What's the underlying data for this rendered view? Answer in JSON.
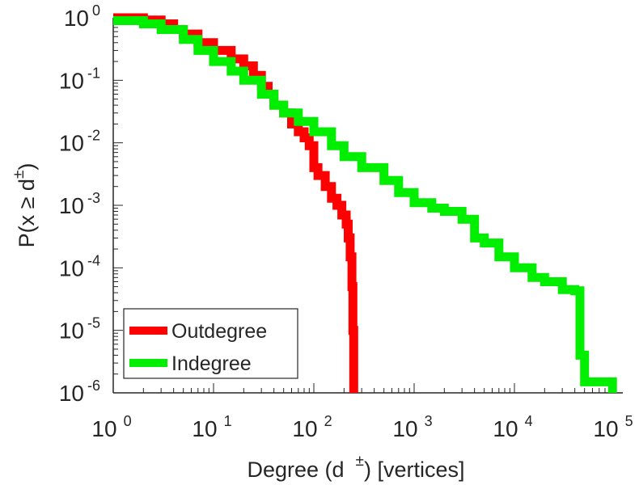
{
  "chart_data": {
    "type": "line",
    "title": "",
    "xlabel": {
      "pre": "Degree (d",
      "sup": "±",
      "post": ") [vertices]"
    },
    "ylabel": {
      "pre": "P(x ≥ d",
      "sup": "±",
      "post": ")"
    },
    "xscale": "log",
    "yscale": "log",
    "xlim": [
      1,
      100000
    ],
    "ylim": [
      1e-06,
      1
    ],
    "grid": false,
    "legend_position": "bottom-left",
    "xticks": [
      {
        "base": "10",
        "exp": "0"
      },
      {
        "base": "10",
        "exp": "1"
      },
      {
        "base": "10",
        "exp": "2"
      },
      {
        "base": "10",
        "exp": "3"
      },
      {
        "base": "10",
        "exp": "4"
      },
      {
        "base": "10",
        "exp": "5"
      }
    ],
    "yticks": [
      {
        "base": "10",
        "exp": "0"
      },
      {
        "base": "10",
        "exp": "-1"
      },
      {
        "base": "10",
        "exp": "-2"
      },
      {
        "base": "10",
        "exp": "-3"
      },
      {
        "base": "10",
        "exp": "-4"
      },
      {
        "base": "10",
        "exp": "-5"
      },
      {
        "base": "10",
        "exp": "-6"
      }
    ],
    "series": [
      {
        "name": "Outdegree",
        "color": "#ff0000",
        "points": [
          [
            1,
            1
          ],
          [
            2,
            0.92
          ],
          [
            3,
            0.8
          ],
          [
            4,
            0.65
          ],
          [
            5,
            0.55
          ],
          [
            7,
            0.4
          ],
          [
            10,
            0.3
          ],
          [
            15,
            0.22
          ],
          [
            20,
            0.17
          ],
          [
            25,
            0.12
          ],
          [
            30,
            0.08
          ],
          [
            35,
            0.06
          ],
          [
            40,
            0.04
          ],
          [
            50,
            0.03
          ],
          [
            60,
            0.02
          ],
          [
            70,
            0.015
          ],
          [
            80,
            0.012
          ],
          [
            90,
            0.009
          ],
          [
            100,
            0.004
          ],
          [
            110,
            0.003
          ],
          [
            130,
            0.002
          ],
          [
            150,
            0.0013
          ],
          [
            170,
            0.001
          ],
          [
            190,
            0.0007
          ],
          [
            210,
            0.0005
          ],
          [
            220,
            0.0003
          ],
          [
            230,
            0.00015
          ],
          [
            240,
            5e-05
          ],
          [
            245,
            1e-05
          ],
          [
            250,
            1e-06
          ]
        ]
      },
      {
        "name": "Indegree",
        "color": "#00ee00",
        "points": [
          [
            1,
            0.9
          ],
          [
            2,
            0.8
          ],
          [
            3,
            0.65
          ],
          [
            5,
            0.45
          ],
          [
            7,
            0.3
          ],
          [
            10,
            0.2
          ],
          [
            15,
            0.14
          ],
          [
            20,
            0.1
          ],
          [
            30,
            0.06
          ],
          [
            40,
            0.04
          ],
          [
            50,
            0.03
          ],
          [
            70,
            0.022
          ],
          [
            100,
            0.015
          ],
          [
            150,
            0.009
          ],
          [
            200,
            0.006
          ],
          [
            300,
            0.004
          ],
          [
            500,
            0.0025
          ],
          [
            700,
            0.0016
          ],
          [
            1000,
            0.0011
          ],
          [
            1500,
            0.0009
          ],
          [
            2000,
            0.0008
          ],
          [
            3000,
            0.0006
          ],
          [
            4000,
            0.0003
          ],
          [
            5000,
            0.00025
          ],
          [
            7000,
            0.00015
          ],
          [
            10000,
            0.0001
          ],
          [
            15000,
            7e-05
          ],
          [
            20000,
            6e-05
          ],
          [
            30000,
            4.5e-05
          ],
          [
            40000,
            4.3e-05
          ],
          [
            45000,
            4e-06
          ],
          [
            50000,
            1.5e-06
          ],
          [
            80000,
            1.5e-06
          ],
          [
            95000,
            1e-06
          ]
        ]
      }
    ]
  }
}
